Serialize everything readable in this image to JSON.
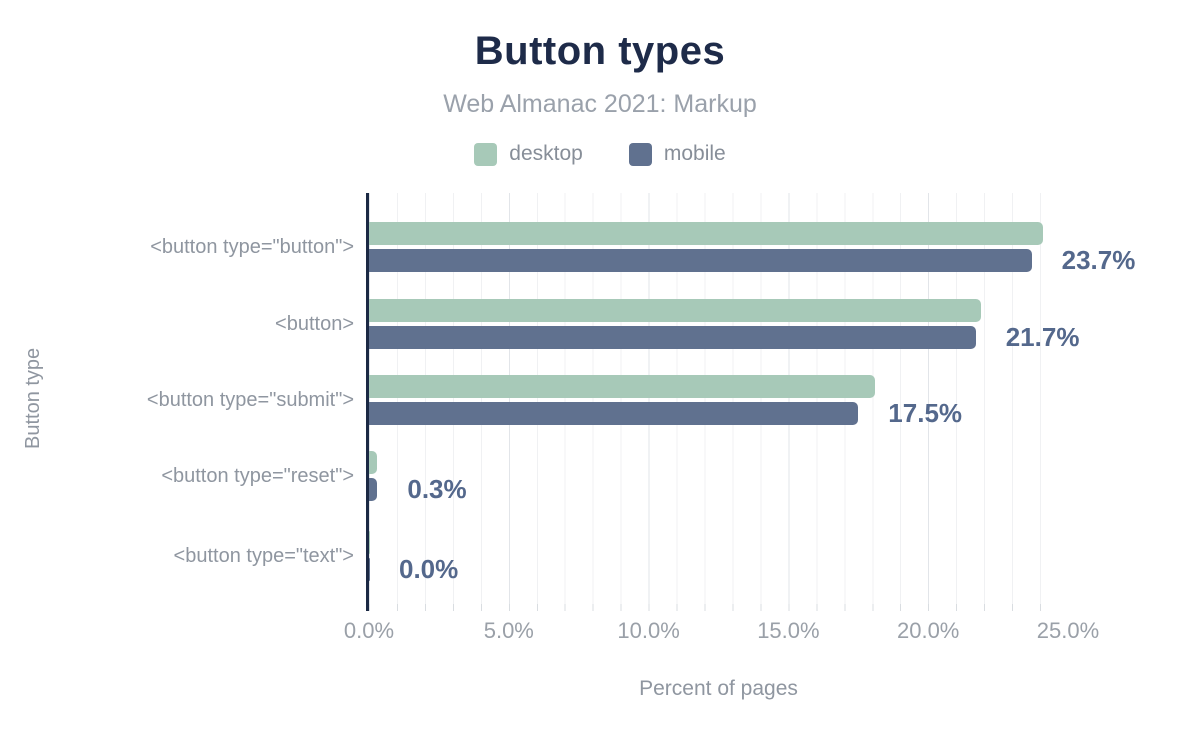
{
  "title": "Button types",
  "subtitle": "Web Almanac 2021: Markup",
  "legend": [
    {
      "label": "desktop",
      "color": "#a7c9b8"
    },
    {
      "label": "mobile",
      "color": "#60718f"
    }
  ],
  "ylabel": "Button type",
  "xlabel": "Percent of pages",
  "colors": {
    "title": "#1e2b49",
    "axis_line": "#1b2944",
    "value_label": "#54688c",
    "muted_text": "#8f96a0",
    "desktop_bar": "#a7c9b8",
    "mobile_bar": "#60718f"
  },
  "chart_data": {
    "type": "bar",
    "orientation": "horizontal",
    "title": "Button types",
    "subtitle": "Web Almanac 2021: Markup",
    "xlabel": "Percent of pages",
    "ylabel": "Button type",
    "categories": [
      "<button type=\"button\">",
      "<button>",
      "<button type=\"submit\">",
      "<button type=\"reset\">",
      "<button type=\"text\">"
    ],
    "series": [
      {
        "name": "desktop",
        "color": "#a7c9b8",
        "values": [
          24.1,
          21.9,
          18.1,
          0.3,
          0.0
        ]
      },
      {
        "name": "mobile",
        "color": "#60718f",
        "values": [
          23.7,
          21.7,
          17.5,
          0.3,
          0.0
        ]
      }
    ],
    "value_labels": [
      "23.7%",
      "21.7%",
      "17.5%",
      "0.3%",
      "0.0%"
    ],
    "value_labels_source": "mobile",
    "x_ticks": [
      "0.0%",
      "5.0%",
      "10.0%",
      "15.0%",
      "20.0%",
      "25.0%"
    ],
    "xlim": [
      0,
      25
    ],
    "grid": "vertical minor every 1%, major every 5%",
    "legend_position": "top-center"
  }
}
